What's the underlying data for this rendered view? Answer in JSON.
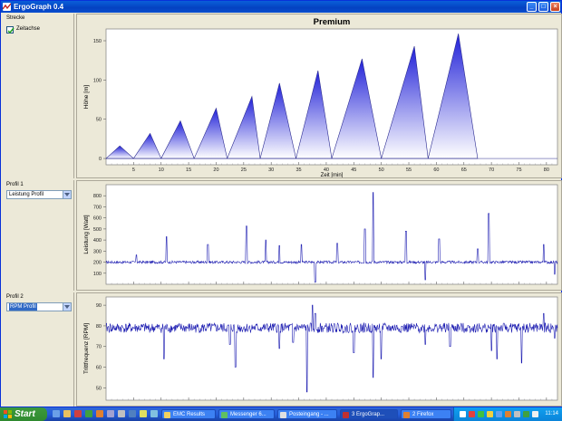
{
  "window": {
    "title": "ErgoGraph 0.4"
  },
  "left": {
    "strecke": {
      "label": "Strecke",
      "checkbox_label": "Zeitachse",
      "checked": true
    },
    "profil1": {
      "label": "Profil 1",
      "select_value": "Leistung Profil"
    },
    "profil2": {
      "label": "Profil 2",
      "select_value": "RPM Profil"
    }
  },
  "chart_data": [
    {
      "type": "area",
      "title": "Premium",
      "xlabel": "Zeit [min]",
      "ylabel": "Höhe [m]",
      "xlim": [
        0,
        82
      ],
      "ylim": [
        -8,
        165
      ],
      "x_ticks": [
        5,
        10,
        15,
        20,
        25,
        30,
        35,
        40,
        45,
        50,
        55,
        60,
        65,
        70,
        75,
        80
      ],
      "y_ticks": [
        0,
        50,
        100,
        150
      ],
      "grid": false,
      "fill_gradient": [
        "#2020d8",
        "#ffffff"
      ],
      "x": [
        0,
        2.5,
        5,
        8,
        10,
        13.5,
        16,
        20,
        22,
        26.5,
        28,
        31.5,
        34.5,
        38.5,
        41,
        46.5,
        50,
        56,
        58.5,
        64,
        67.5,
        74,
        76,
        82
      ],
      "y": [
        0,
        16,
        0,
        32,
        0,
        48,
        0,
        64,
        0,
        79,
        0,
        96,
        0,
        112,
        0,
        127,
        0,
        143,
        0,
        159,
        0,
        0,
        0,
        0
      ]
    },
    {
      "type": "line",
      "ylabel": "Leistung [Watt]",
      "color": "#1a1ab0",
      "baseline": 200,
      "xlim": [
        0,
        82
      ],
      "ylim": [
        0,
        900
      ],
      "y_ticks": [
        100,
        200,
        300,
        400,
        500,
        600,
        700,
        800
      ],
      "x_ticks": [
        5,
        10,
        15,
        20,
        25,
        30,
        35,
        40,
        45,
        50,
        55,
        60,
        65,
        70,
        75,
        80
      ],
      "spikes": [
        {
          "x": 5.5,
          "y": 265
        },
        {
          "x": 11,
          "y": 430
        },
        {
          "x": 18.5,
          "y": 360
        },
        {
          "x": 25.5,
          "y": 525
        },
        {
          "x": 29,
          "y": 400
        },
        {
          "x": 31.5,
          "y": 350
        },
        {
          "x": 35.5,
          "y": 360
        },
        {
          "x": 38,
          "y": 20
        },
        {
          "x": 42,
          "y": 370
        },
        {
          "x": 47,
          "y": 500
        },
        {
          "x": 48.5,
          "y": 830
        },
        {
          "x": 54.5,
          "y": 480
        },
        {
          "x": 58,
          "y": 40
        },
        {
          "x": 60.5,
          "y": 410
        },
        {
          "x": 67.5,
          "y": 320
        },
        {
          "x": 69.5,
          "y": 640
        },
        {
          "x": 79.5,
          "y": 360
        },
        {
          "x": 81.5,
          "y": 90
        }
      ]
    },
    {
      "type": "line",
      "ylabel": "Trittfrequenz [RPM]",
      "color": "#1a1ab0",
      "baseline": 79,
      "xlim": [
        0,
        82
      ],
      "ylim": [
        44,
        94
      ],
      "y_ticks": [
        50,
        60,
        70,
        80,
        90
      ],
      "x_ticks": [
        5,
        10,
        15,
        20,
        25,
        30,
        35,
        40,
        45,
        50,
        55,
        60,
        65,
        70,
        75,
        80
      ],
      "spikes": [
        {
          "x": 10.5,
          "y": 64
        },
        {
          "x": 22.5,
          "y": 71
        },
        {
          "x": 23.5,
          "y": 60
        },
        {
          "x": 31.5,
          "y": 69
        },
        {
          "x": 34,
          "y": 72
        },
        {
          "x": 36.5,
          "y": 48
        },
        {
          "x": 37.5,
          "y": 90
        },
        {
          "x": 38,
          "y": 86
        },
        {
          "x": 45,
          "y": 67
        },
        {
          "x": 48.5,
          "y": 55
        },
        {
          "x": 50,
          "y": 64
        },
        {
          "x": 58,
          "y": 71
        },
        {
          "x": 62.5,
          "y": 70
        },
        {
          "x": 70,
          "y": 68
        },
        {
          "x": 71,
          "y": 64
        },
        {
          "x": 75.5,
          "y": 62
        },
        {
          "x": 79.5,
          "y": 86
        },
        {
          "x": 81.5,
          "y": 74
        }
      ]
    }
  ],
  "taskbar": {
    "start_label": "Start",
    "tasks": [
      {
        "label": "EMC Results"
      },
      {
        "label": "Messenger 6..."
      },
      {
        "label": "Posteingang - ..."
      },
      {
        "label": "3 ErgoGrap..."
      },
      {
        "label": "2 Firefox"
      }
    ],
    "clock": "11:14"
  }
}
